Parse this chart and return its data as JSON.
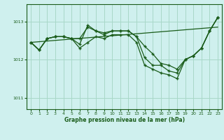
{
  "xlabel": "Graphe pression niveau de la mer (hPa)",
  "xlim": [
    -0.5,
    23.5
  ],
  "ylim": [
    1010.7,
    1013.45
  ],
  "yticks": [
    1011,
    1012,
    1013
  ],
  "xticks": [
    0,
    1,
    2,
    3,
    4,
    5,
    6,
    7,
    8,
    9,
    10,
    11,
    12,
    13,
    14,
    15,
    16,
    17,
    18,
    19,
    20,
    21,
    22,
    23
  ],
  "bg_color": "#cff0ee",
  "grid_color": "#a8d8c8",
  "line_color": "#1a5c1a",
  "line1_x": [
    0,
    1,
    2,
    3,
    4,
    5,
    6,
    7,
    8,
    9,
    10,
    11,
    12,
    13,
    14,
    15,
    16,
    17,
    18,
    19,
    20,
    21,
    22,
    23
  ],
  "line1_y": [
    1012.45,
    1012.25,
    1012.55,
    1012.6,
    1012.6,
    1012.55,
    1012.55,
    1012.85,
    1012.75,
    1012.7,
    1012.75,
    1012.75,
    1012.75,
    1012.6,
    1012.35,
    1012.15,
    1011.9,
    1011.85,
    1011.75,
    1012.0,
    1012.1,
    1012.3,
    1012.75,
    1013.1
  ],
  "line2_x": [
    0,
    1,
    2,
    3,
    4,
    5,
    6,
    7,
    8,
    9,
    10,
    11,
    12,
    13,
    14,
    15,
    16,
    17,
    18,
    19,
    20,
    21,
    22,
    23
  ],
  "line2_y": [
    1012.45,
    1012.25,
    1012.55,
    1012.6,
    1012.6,
    1012.55,
    1012.4,
    1012.9,
    1012.75,
    1012.65,
    1012.75,
    1012.75,
    1012.75,
    1012.6,
    1012.05,
    1011.85,
    1011.85,
    1011.7,
    1011.65,
    1012.0,
    1012.1,
    1012.3,
    1012.75,
    1013.1
  ],
  "line3_x": [
    0,
    23
  ],
  "line3_y": [
    1012.45,
    1012.85
  ],
  "line4_x": [
    0,
    1,
    2,
    3,
    4,
    5,
    6,
    7,
    8,
    9,
    10,
    11,
    12,
    13,
    14,
    15,
    16,
    17,
    18,
    19,
    20,
    21,
    22,
    23
  ],
  "line4_y": [
    1012.45,
    1012.25,
    1012.55,
    1012.6,
    1012.6,
    1012.55,
    1012.3,
    1012.45,
    1012.6,
    1012.55,
    1012.65,
    1012.65,
    1012.65,
    1012.45,
    1011.85,
    1011.75,
    1011.65,
    1011.6,
    1011.5,
    1012.0,
    1012.1,
    1012.3,
    1012.75,
    1013.1
  ]
}
